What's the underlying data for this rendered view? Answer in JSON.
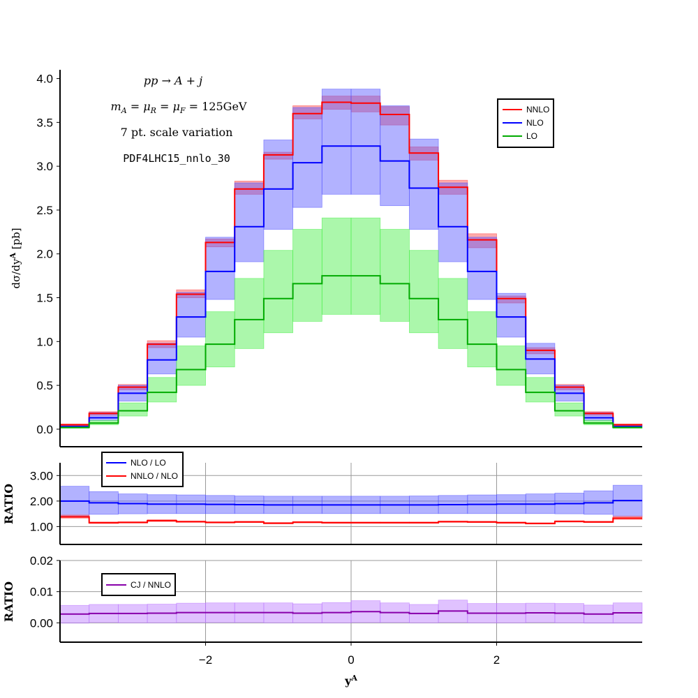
{
  "chart_data": [
    {
      "type": "step-band",
      "panel": "main",
      "ylabel": "dσ/dy^A [pb]",
      "ylim": [
        -0.2,
        4.1
      ],
      "yticks": [
        "0.0",
        "0.5",
        "1.0",
        "1.5",
        "2.0",
        "2.5",
        "3.0",
        "3.5",
        "4.0"
      ],
      "ytick_values": [
        0.0,
        0.5,
        1.0,
        1.5,
        2.0,
        2.5,
        3.0,
        3.5,
        4.0
      ],
      "xlim": [
        -4.0,
        4.0
      ],
      "bin_edges": [
        -4.0,
        -3.6,
        -3.2,
        -2.8,
        -2.4,
        -2.0,
        -1.6,
        -1.2,
        -0.8,
        -0.4,
        0.0,
        0.4,
        0.8,
        1.2,
        1.6,
        2.0,
        2.4,
        2.8,
        3.2,
        3.6,
        4.0
      ],
      "annotations": [
        "pp → A + j",
        "m_A = μ_R = μ_F = 125GeV",
        "7 pt. scale variation",
        "PDF4LHC15_nnlo_30"
      ],
      "legend_position": "top-right",
      "series": [
        {
          "name": "NNLO",
          "color": "#ff0000",
          "fill": "#ff4444",
          "values": [
            0.05,
            0.18,
            0.48,
            0.97,
            1.54,
            2.13,
            2.74,
            3.13,
            3.6,
            3.73,
            3.72,
            3.59,
            3.15,
            2.76,
            2.16,
            1.49,
            0.9,
            0.48,
            0.18,
            0.05
          ],
          "low": [
            0.04,
            0.16,
            0.45,
            0.93,
            1.5,
            2.08,
            2.68,
            3.08,
            3.54,
            3.65,
            3.62,
            3.47,
            3.07,
            2.68,
            2.07,
            1.44,
            0.86,
            0.45,
            0.16,
            0.04
          ],
          "high": [
            0.06,
            0.2,
            0.51,
            1.01,
            1.59,
            2.17,
            2.83,
            3.16,
            3.69,
            3.8,
            3.8,
            3.68,
            3.22,
            2.84,
            2.23,
            1.52,
            0.93,
            0.51,
            0.2,
            0.06
          ]
        },
        {
          "name": "NLO",
          "color": "#0000ff",
          "fill": "#5555ff",
          "values": [
            0.03,
            0.13,
            0.41,
            0.79,
            1.28,
            1.8,
            2.31,
            2.74,
            3.04,
            3.23,
            3.23,
            3.06,
            2.75,
            2.31,
            1.8,
            1.28,
            0.8,
            0.41,
            0.13,
            0.03
          ],
          "low": [
            0.02,
            0.1,
            0.32,
            0.63,
            1.05,
            1.48,
            1.91,
            2.28,
            2.53,
            2.68,
            2.68,
            2.55,
            2.28,
            1.91,
            1.48,
            1.05,
            0.63,
            0.32,
            0.1,
            0.02
          ],
          "high": [
            0.05,
            0.19,
            0.5,
            0.98,
            1.56,
            2.19,
            2.81,
            3.3,
            3.67,
            3.88,
            3.88,
            3.69,
            3.31,
            2.81,
            2.19,
            1.55,
            0.98,
            0.5,
            0.19,
            0.05
          ]
        },
        {
          "name": "LO",
          "color": "#00aa00",
          "fill": "#44ee44",
          "values": [
            0.02,
            0.07,
            0.21,
            0.42,
            0.68,
            0.97,
            1.25,
            1.49,
            1.66,
            1.75,
            1.75,
            1.66,
            1.49,
            1.25,
            0.97,
            0.68,
            0.42,
            0.21,
            0.07,
            0.02
          ],
          "low": [
            0.01,
            0.05,
            0.15,
            0.31,
            0.5,
            0.71,
            0.92,
            1.1,
            1.23,
            1.31,
            1.31,
            1.23,
            1.1,
            0.92,
            0.71,
            0.5,
            0.31,
            0.15,
            0.05,
            0.01
          ],
          "high": [
            0.03,
            0.1,
            0.3,
            0.59,
            0.95,
            1.34,
            1.72,
            2.04,
            2.28,
            2.41,
            2.41,
            2.28,
            2.04,
            1.72,
            1.34,
            0.95,
            0.59,
            0.3,
            0.1,
            0.03
          ]
        }
      ]
    },
    {
      "type": "step-band",
      "panel": "ratio1",
      "ylabel": "RATIO",
      "ylim": [
        0.3,
        3.5
      ],
      "yticks": [
        "1.00",
        "2.00",
        "3.00"
      ],
      "ytick_values": [
        1.0,
        2.0,
        3.0
      ],
      "xlim": [
        -4.0,
        4.0
      ],
      "grid": true,
      "legend_position": "top-left",
      "series": [
        {
          "name": "NLO / LO",
          "color": "#0000ff",
          "fill": "#5555ff",
          "values": [
            2.0,
            1.93,
            1.9,
            1.88,
            1.88,
            1.87,
            1.86,
            1.85,
            1.85,
            1.85,
            1.85,
            1.85,
            1.85,
            1.86,
            1.87,
            1.88,
            1.88,
            1.9,
            1.93,
            2.02
          ],
          "low": [
            1.4,
            1.48,
            1.5,
            1.51,
            1.51,
            1.51,
            1.51,
            1.51,
            1.51,
            1.51,
            1.51,
            1.51,
            1.51,
            1.51,
            1.51,
            1.51,
            1.51,
            1.5,
            1.48,
            1.4
          ],
          "high": [
            2.58,
            2.37,
            2.28,
            2.25,
            2.24,
            2.22,
            2.2,
            2.19,
            2.19,
            2.19,
            2.19,
            2.19,
            2.2,
            2.22,
            2.24,
            2.25,
            2.28,
            2.31,
            2.4,
            2.62
          ]
        },
        {
          "name": "NNLO / NLO",
          "color": "#ff0000",
          "fill": "#ff4444",
          "values": [
            1.38,
            1.15,
            1.16,
            1.23,
            1.19,
            1.16,
            1.18,
            1.13,
            1.17,
            1.15,
            1.15,
            1.15,
            1.15,
            1.19,
            1.18,
            1.15,
            1.12,
            1.2,
            1.18,
            1.33
          ],
          "low": [
            1.33,
            1.12,
            1.14,
            1.2,
            1.17,
            1.14,
            1.16,
            1.11,
            1.15,
            1.13,
            1.13,
            1.13,
            1.13,
            1.17,
            1.16,
            1.13,
            1.1,
            1.18,
            1.16,
            1.28
          ],
          "high": [
            1.45,
            1.18,
            1.19,
            1.27,
            1.22,
            1.19,
            1.21,
            1.16,
            1.2,
            1.18,
            1.18,
            1.18,
            1.18,
            1.22,
            1.21,
            1.18,
            1.15,
            1.23,
            1.21,
            1.4
          ]
        }
      ]
    },
    {
      "type": "step-band",
      "panel": "ratio2",
      "ylabel": "RATIO",
      "xlabel": "y^A",
      "ylim": [
        -0.0062,
        0.02
      ],
      "yticks": [
        "0.00",
        "0.01",
        "0.02"
      ],
      "ytick_values": [
        0.0,
        0.01,
        0.02
      ],
      "xlim": [
        -4.0,
        4.0
      ],
      "xticks": [
        "−2",
        "0",
        "2"
      ],
      "xtick_values": [
        -2,
        0,
        2
      ],
      "grid": true,
      "legend_position": "top-left",
      "series": [
        {
          "name": "CJ / NNLO",
          "color": "#8800aa",
          "fill": "#bb77ff",
          "values": [
            0.0028,
            0.003,
            0.003,
            0.0031,
            0.0033,
            0.0033,
            0.0033,
            0.0033,
            0.0031,
            0.0033,
            0.0036,
            0.0033,
            0.003,
            0.0038,
            0.0031,
            0.0031,
            0.0032,
            0.0031,
            0.0028,
            0.0032
          ],
          "low": [
            -0.0001,
            0.0001,
            0.0,
            0.0,
            0.0001,
            0.0001,
            0.0001,
            0.0,
            0.0,
            0.0,
            0.0001,
            0.0001,
            0.0,
            0.0001,
            0.0,
            0.0,
            0.0001,
            0.0,
            -0.0001,
            -0.0001
          ],
          "high": [
            0.0056,
            0.0059,
            0.0059,
            0.006,
            0.0063,
            0.0064,
            0.0064,
            0.0064,
            0.0061,
            0.0065,
            0.0071,
            0.0064,
            0.0059,
            0.0073,
            0.0062,
            0.0062,
            0.0063,
            0.0062,
            0.0057,
            0.0064
          ]
        }
      ]
    }
  ]
}
